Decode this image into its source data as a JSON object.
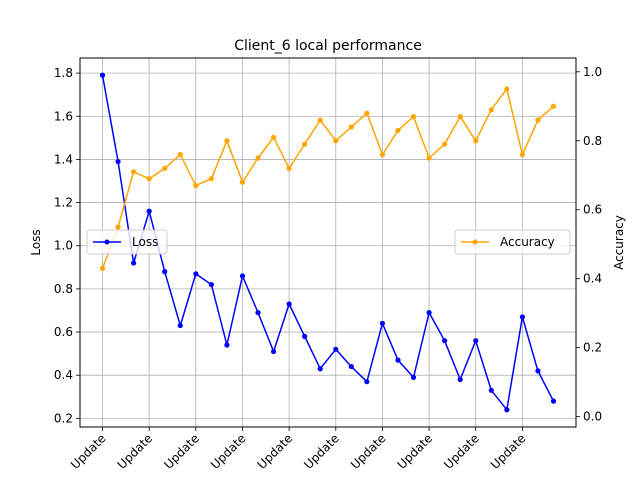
{
  "chart_data": {
    "type": "line",
    "title": "Client_6 local performance",
    "xlabel": "",
    "ylabel_left": "Loss",
    "ylabel_right": "Accuracy",
    "x": [
      0,
      1,
      2,
      3,
      4,
      5,
      6,
      7,
      8,
      9,
      10,
      11,
      12,
      13,
      14,
      15,
      16,
      17,
      18,
      19,
      20,
      21,
      22,
      23,
      24,
      25,
      26,
      27,
      28,
      29
    ],
    "x_tick_positions": [
      0,
      3,
      6,
      9,
      12,
      15,
      18,
      21,
      24,
      27
    ],
    "x_tick_label": "Update",
    "left_axis": {
      "ylim": [
        0.16,
        1.87
      ],
      "ticks": [
        0.2,
        0.4,
        0.6,
        0.8,
        1.0,
        1.2,
        1.4,
        1.6,
        1.8
      ]
    },
    "right_axis": {
      "ylim": [
        -0.03,
        1.04
      ],
      "ticks": [
        0.0,
        0.2,
        0.4,
        0.6,
        0.8,
        1.0
      ]
    },
    "grid": true,
    "series": [
      {
        "name": "Loss",
        "axis": "left",
        "color": "#0000ff",
        "marker": "circle",
        "legend_position": "center-left",
        "values": [
          1.79,
          1.39,
          0.92,
          1.16,
          0.88,
          0.63,
          0.87,
          0.82,
          0.54,
          0.86,
          0.69,
          0.51,
          0.73,
          0.58,
          0.43,
          0.52,
          0.44,
          0.37,
          0.64,
          0.47,
          0.39,
          0.69,
          0.56,
          0.38,
          0.56,
          0.33,
          0.24,
          0.67,
          0.42,
          0.28
        ]
      },
      {
        "name": "Accuracy",
        "axis": "right",
        "color": "#ffa500",
        "marker": "circle",
        "legend_position": "center-right",
        "values": [
          0.43,
          0.55,
          0.71,
          0.69,
          0.72,
          0.76,
          0.67,
          0.69,
          0.8,
          0.68,
          0.75,
          0.81,
          0.72,
          0.79,
          0.86,
          0.8,
          0.84,
          0.88,
          0.76,
          0.83,
          0.87,
          0.75,
          0.79,
          0.87,
          0.8,
          0.89,
          0.95,
          0.76,
          0.86,
          0.9
        ]
      }
    ]
  }
}
